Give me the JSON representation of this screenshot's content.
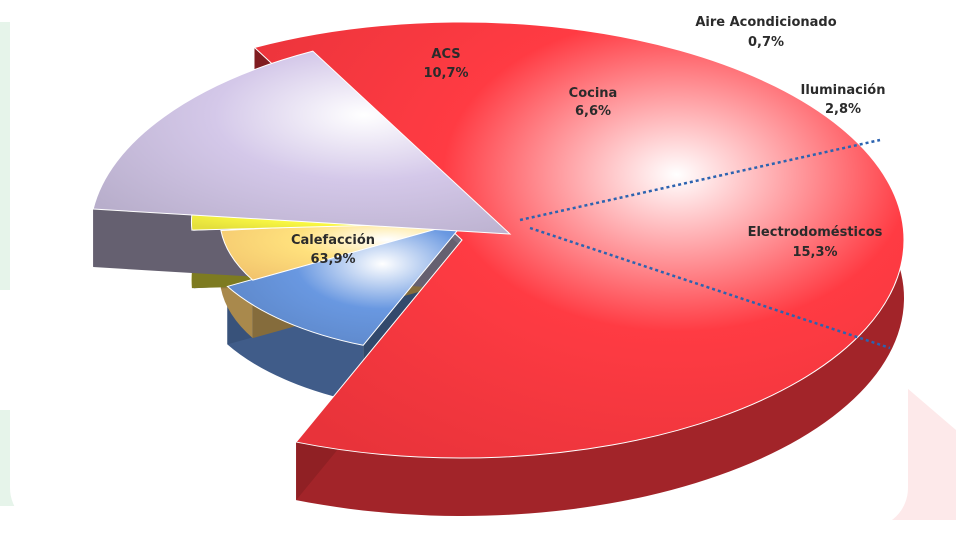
{
  "chart_data": {
    "type": "pie",
    "style": "3d-exploded",
    "title": "",
    "slices": [
      {
        "name": "Calefacción",
        "value": 63.9,
        "label": "63,9%",
        "color": "#e8333a"
      },
      {
        "name": "ACS",
        "value": 10.7,
        "label": "10,7%",
        "color": "#5b84c4"
      },
      {
        "name": "Cocina",
        "value": 6.6,
        "label": "6,6%",
        "color": "#f2c46d"
      },
      {
        "name": "Aire Acondicionado",
        "value": 0.7,
        "label": "0,7%",
        "color": "#6f9bb8"
      },
      {
        "name": "Iluminación",
        "value": 2.8,
        "label": "2,8%",
        "color": "#e4df3c"
      },
      {
        "name": "Electrodomésticos",
        "value": 15.3,
        "label": "15,3%",
        "color": "#b8aecb"
      }
    ]
  }
}
